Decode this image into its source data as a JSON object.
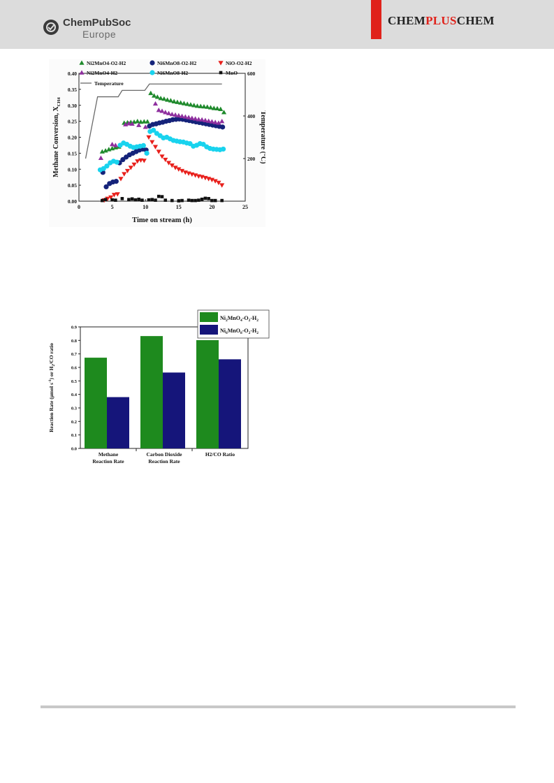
{
  "header": {
    "publisher_line1": "ChemPubSoc",
    "publisher_line2": "Europe",
    "journal": {
      "part1": "CHEM",
      "part2": "PLUS",
      "part3": "CHEM"
    },
    "colors": {
      "band": "#dcdcdc",
      "accent": "#e0221b"
    },
    "icons": [
      "chempubsoc-logo-icon"
    ]
  },
  "chart_data": [
    {
      "type": "scatter",
      "xlabel": "Time on stream (h)",
      "ylabel_main": "Methane Conversion, X",
      "ylabel_sub": "CH4",
      "y2label": "Temperature (°C)",
      "xlim": [
        0,
        25
      ],
      "ylim": [
        0,
        0.4
      ],
      "y2lim": [
        0,
        600
      ],
      "x_ticks": [
        "0",
        "5",
        "10",
        "15",
        "20",
        "25"
      ],
      "y_ticks": [
        "0.00",
        "0.05",
        "0.10",
        "0.15",
        "0.20",
        "0.25",
        "0.30",
        "0.35",
        "0.40"
      ],
      "y2_ticks": [
        "200",
        "400",
        "600"
      ],
      "legend_position": "top",
      "series": [
        {
          "name": "Ni2MnO4-O2-H2",
          "legend_main": "Ni",
          "legend_sub": "2MnO4-O2-H2",
          "marker": "triangle-up",
          "color": "#1f8a2c",
          "x": [
            3.5,
            4.0,
            4.5,
            5.0,
            5.5,
            6.0,
            6.8,
            7.3,
            7.8,
            8.3,
            8.8,
            9.3,
            9.8,
            10.3,
            10.8,
            11.3,
            11.8,
            12.3,
            12.8,
            13.3,
            13.8,
            14.3,
            14.8,
            15.3,
            15.8,
            16.3,
            16.8,
            17.3,
            17.8,
            18.3,
            18.8,
            19.3,
            19.8,
            20.3,
            20.8,
            21.3,
            21.8
          ],
          "y": [
            0.155,
            0.158,
            0.162,
            0.165,
            0.168,
            0.17,
            0.245,
            0.246,
            0.247,
            0.248,
            0.25,
            0.248,
            0.249,
            0.249,
            0.338,
            0.33,
            0.326,
            0.322,
            0.32,
            0.317,
            0.315,
            0.312,
            0.31,
            0.308,
            0.306,
            0.304,
            0.302,
            0.3,
            0.298,
            0.297,
            0.296,
            0.295,
            0.293,
            0.291,
            0.29,
            0.288,
            0.278
          ]
        },
        {
          "name": "Ni6MnO8-O2-H2",
          "legend_main": "Ni",
          "legend_sub": "6MnO8-O2-H2",
          "marker": "circle",
          "color": "#15237a",
          "x": [
            3.6,
            4.1,
            4.6,
            5.1,
            5.6,
            6.1,
            6.6,
            7.1,
            7.6,
            8.1,
            8.6,
            9.1,
            9.6,
            10.1,
            10.6,
            11.1,
            11.6,
            12.1,
            12.6,
            13.1,
            13.6,
            14.1,
            14.6,
            15.1,
            15.6,
            16.1,
            16.6,
            17.1,
            17.6,
            18.1,
            18.6,
            19.1,
            19.6,
            20.1,
            20.6,
            21.1,
            21.6
          ],
          "y": [
            0.09,
            0.045,
            0.055,
            0.06,
            0.062,
            0.12,
            0.13,
            0.138,
            0.145,
            0.15,
            0.155,
            0.16,
            0.163,
            0.16,
            0.235,
            0.24,
            0.242,
            0.245,
            0.247,
            0.25,
            0.252,
            0.255,
            0.256,
            0.257,
            0.256,
            0.254,
            0.252,
            0.25,
            0.248,
            0.246,
            0.244,
            0.242,
            0.24,
            0.238,
            0.236,
            0.234,
            0.232
          ]
        },
        {
          "name": "NiO-O2-H2",
          "legend_main": "NiO-O",
          "legend_sub": "2-H2",
          "marker": "triangle-down",
          "color": "#e8201c",
          "x": [
            3.8,
            4.3,
            4.8,
            5.3,
            5.8,
            6.3,
            6.8,
            7.3,
            7.8,
            8.3,
            8.8,
            9.3,
            9.8,
            10.5,
            11.0,
            11.5,
            12.0,
            12.5,
            13.0,
            13.5,
            14.0,
            14.5,
            15.0,
            15.5,
            16.0,
            16.5,
            17.0,
            17.5,
            18.0,
            18.5,
            19.0,
            19.5,
            20.0,
            20.5,
            21.0,
            21.5
          ],
          "y": [
            0.003,
            0.008,
            0.012,
            0.02,
            0.022,
            0.07,
            0.085,
            0.095,
            0.105,
            0.115,
            0.125,
            0.128,
            0.127,
            0.2,
            0.185,
            0.17,
            0.155,
            0.14,
            0.13,
            0.12,
            0.112,
            0.105,
            0.1,
            0.095,
            0.09,
            0.087,
            0.084,
            0.081,
            0.078,
            0.076,
            0.073,
            0.07,
            0.067,
            0.063,
            0.058,
            0.05
          ]
        },
        {
          "name": "Ni2MnO4-H2",
          "legend_main": "Ni",
          "legend_sub": "2MnO4-H2",
          "marker": "triangle-up",
          "color": "#8e2f9e",
          "x": [
            3.3,
            5.0,
            5.5,
            7.0,
            7.5,
            8.0,
            9.0,
            10.0,
            11.5,
            12.0,
            12.5,
            13.0,
            13.5,
            14.0,
            14.5,
            15.0,
            15.5,
            16.0,
            16.5,
            17.0,
            17.5,
            18.0,
            18.5,
            19.0,
            19.5,
            20.0,
            20.5,
            21.0,
            21.5
          ],
          "y": [
            0.135,
            0.178,
            0.175,
            0.24,
            0.243,
            0.242,
            0.238,
            0.232,
            0.305,
            0.285,
            0.282,
            0.278,
            0.275,
            0.272,
            0.27,
            0.268,
            0.266,
            0.264,
            0.262,
            0.26,
            0.258,
            0.256,
            0.255,
            0.253,
            0.251,
            0.249,
            0.247,
            0.245,
            0.25
          ]
        },
        {
          "name": "Ni6MnO8-H2",
          "legend_main": "Ni",
          "legend_sub": "6MnO8-H2",
          "marker": "circle",
          "color": "#19d3ee",
          "x": [
            3.2,
            3.7,
            4.2,
            4.7,
            5.2,
            5.7,
            6.2,
            6.7,
            7.2,
            7.7,
            8.2,
            8.7,
            9.2,
            9.7,
            10.2,
            10.7,
            11.2,
            11.7,
            12.2,
            12.7,
            13.2,
            13.7,
            14.2,
            14.7,
            15.2,
            15.7,
            16.2,
            16.7,
            17.2,
            17.7,
            18.2,
            18.7,
            19.2,
            19.7,
            20.2,
            20.7,
            21.2,
            21.7
          ],
          "y": [
            0.098,
            0.102,
            0.11,
            0.12,
            0.125,
            0.122,
            0.175,
            0.182,
            0.178,
            0.172,
            0.168,
            0.17,
            0.172,
            0.174,
            0.15,
            0.218,
            0.222,
            0.212,
            0.205,
            0.198,
            0.2,
            0.195,
            0.19,
            0.188,
            0.186,
            0.185,
            0.182,
            0.18,
            0.172,
            0.175,
            0.18,
            0.178,
            0.17,
            0.165,
            0.163,
            0.162,
            0.161,
            0.163
          ]
        },
        {
          "name": "MnO",
          "legend_main": "MnO",
          "legend_sub": "",
          "marker": "square",
          "color": "#111111",
          "x": [
            3.5,
            4.0,
            5.0,
            5.5,
            6.5,
            7.5,
            8.0,
            8.5,
            9.0,
            9.5,
            10.5,
            11.0,
            11.5,
            12.0,
            12.5,
            13.0,
            14.0,
            15.0,
            15.5,
            16.5,
            17.0,
            17.5,
            18.0,
            18.5,
            19.0,
            19.5,
            20.0,
            20.5,
            21.5
          ],
          "y": [
            0.002,
            0.005,
            0.004,
            0.003,
            0.008,
            0.005,
            0.007,
            0.004,
            0.006,
            0.003,
            0.004,
            0.005,
            0.003,
            0.015,
            0.014,
            0.003,
            0.002,
            0.001,
            0.002,
            0.003,
            0.002,
            0.002,
            0.003,
            0.006,
            0.009,
            0.008,
            0.002,
            0.002,
            0.002
          ]
        },
        {
          "name": "Temperature",
          "legend_main": "Temperature",
          "legend_sub": "",
          "marker": "line",
          "axis": "y2",
          "color": "#6a6a6a",
          "x": [
            1.0,
            2.8,
            5.9,
            6.1,
            6.5,
            9.9,
            10.6,
            21.5
          ],
          "y": [
            200,
            490,
            490,
            500,
            520,
            520,
            550,
            550
          ]
        }
      ]
    },
    {
      "type": "bar",
      "categories": [
        [
          "Methane",
          "Reaction Rate"
        ],
        [
          "Carbon Dioxide",
          "Reaction Rate"
        ],
        [
          "H2/CO Ratio"
        ]
      ],
      "ylabel_parts": [
        "Reaction Rate (µmol s",
        "-1",
        ") or H",
        "2",
        "/CO ratio"
      ],
      "ylim": [
        0,
        0.9
      ],
      "y_ticks": [
        "0.0",
        "0.1",
        "0.2",
        "0.3",
        "0.4",
        "0.5",
        "0.6",
        "0.7",
        "0.8",
        "0.9"
      ],
      "legend_position": "top-right",
      "series": [
        {
          "name": "Ni2MnO4-O2-H2",
          "legend_parts": [
            "Ni",
            "2",
            "MnO",
            "4",
            "-O",
            "2",
            "-H",
            "2"
          ],
          "color": "#1e8a1e",
          "values": [
            0.672,
            0.832,
            0.802
          ]
        },
        {
          "name": "Ni6MnO8-O2-H2",
          "legend_parts": [
            "Ni",
            "6",
            "MnO",
            "8",
            "-O",
            "2",
            "-H",
            "2"
          ],
          "color": "#15157a",
          "values": [
            0.38,
            0.562,
            0.66
          ]
        }
      ]
    }
  ]
}
